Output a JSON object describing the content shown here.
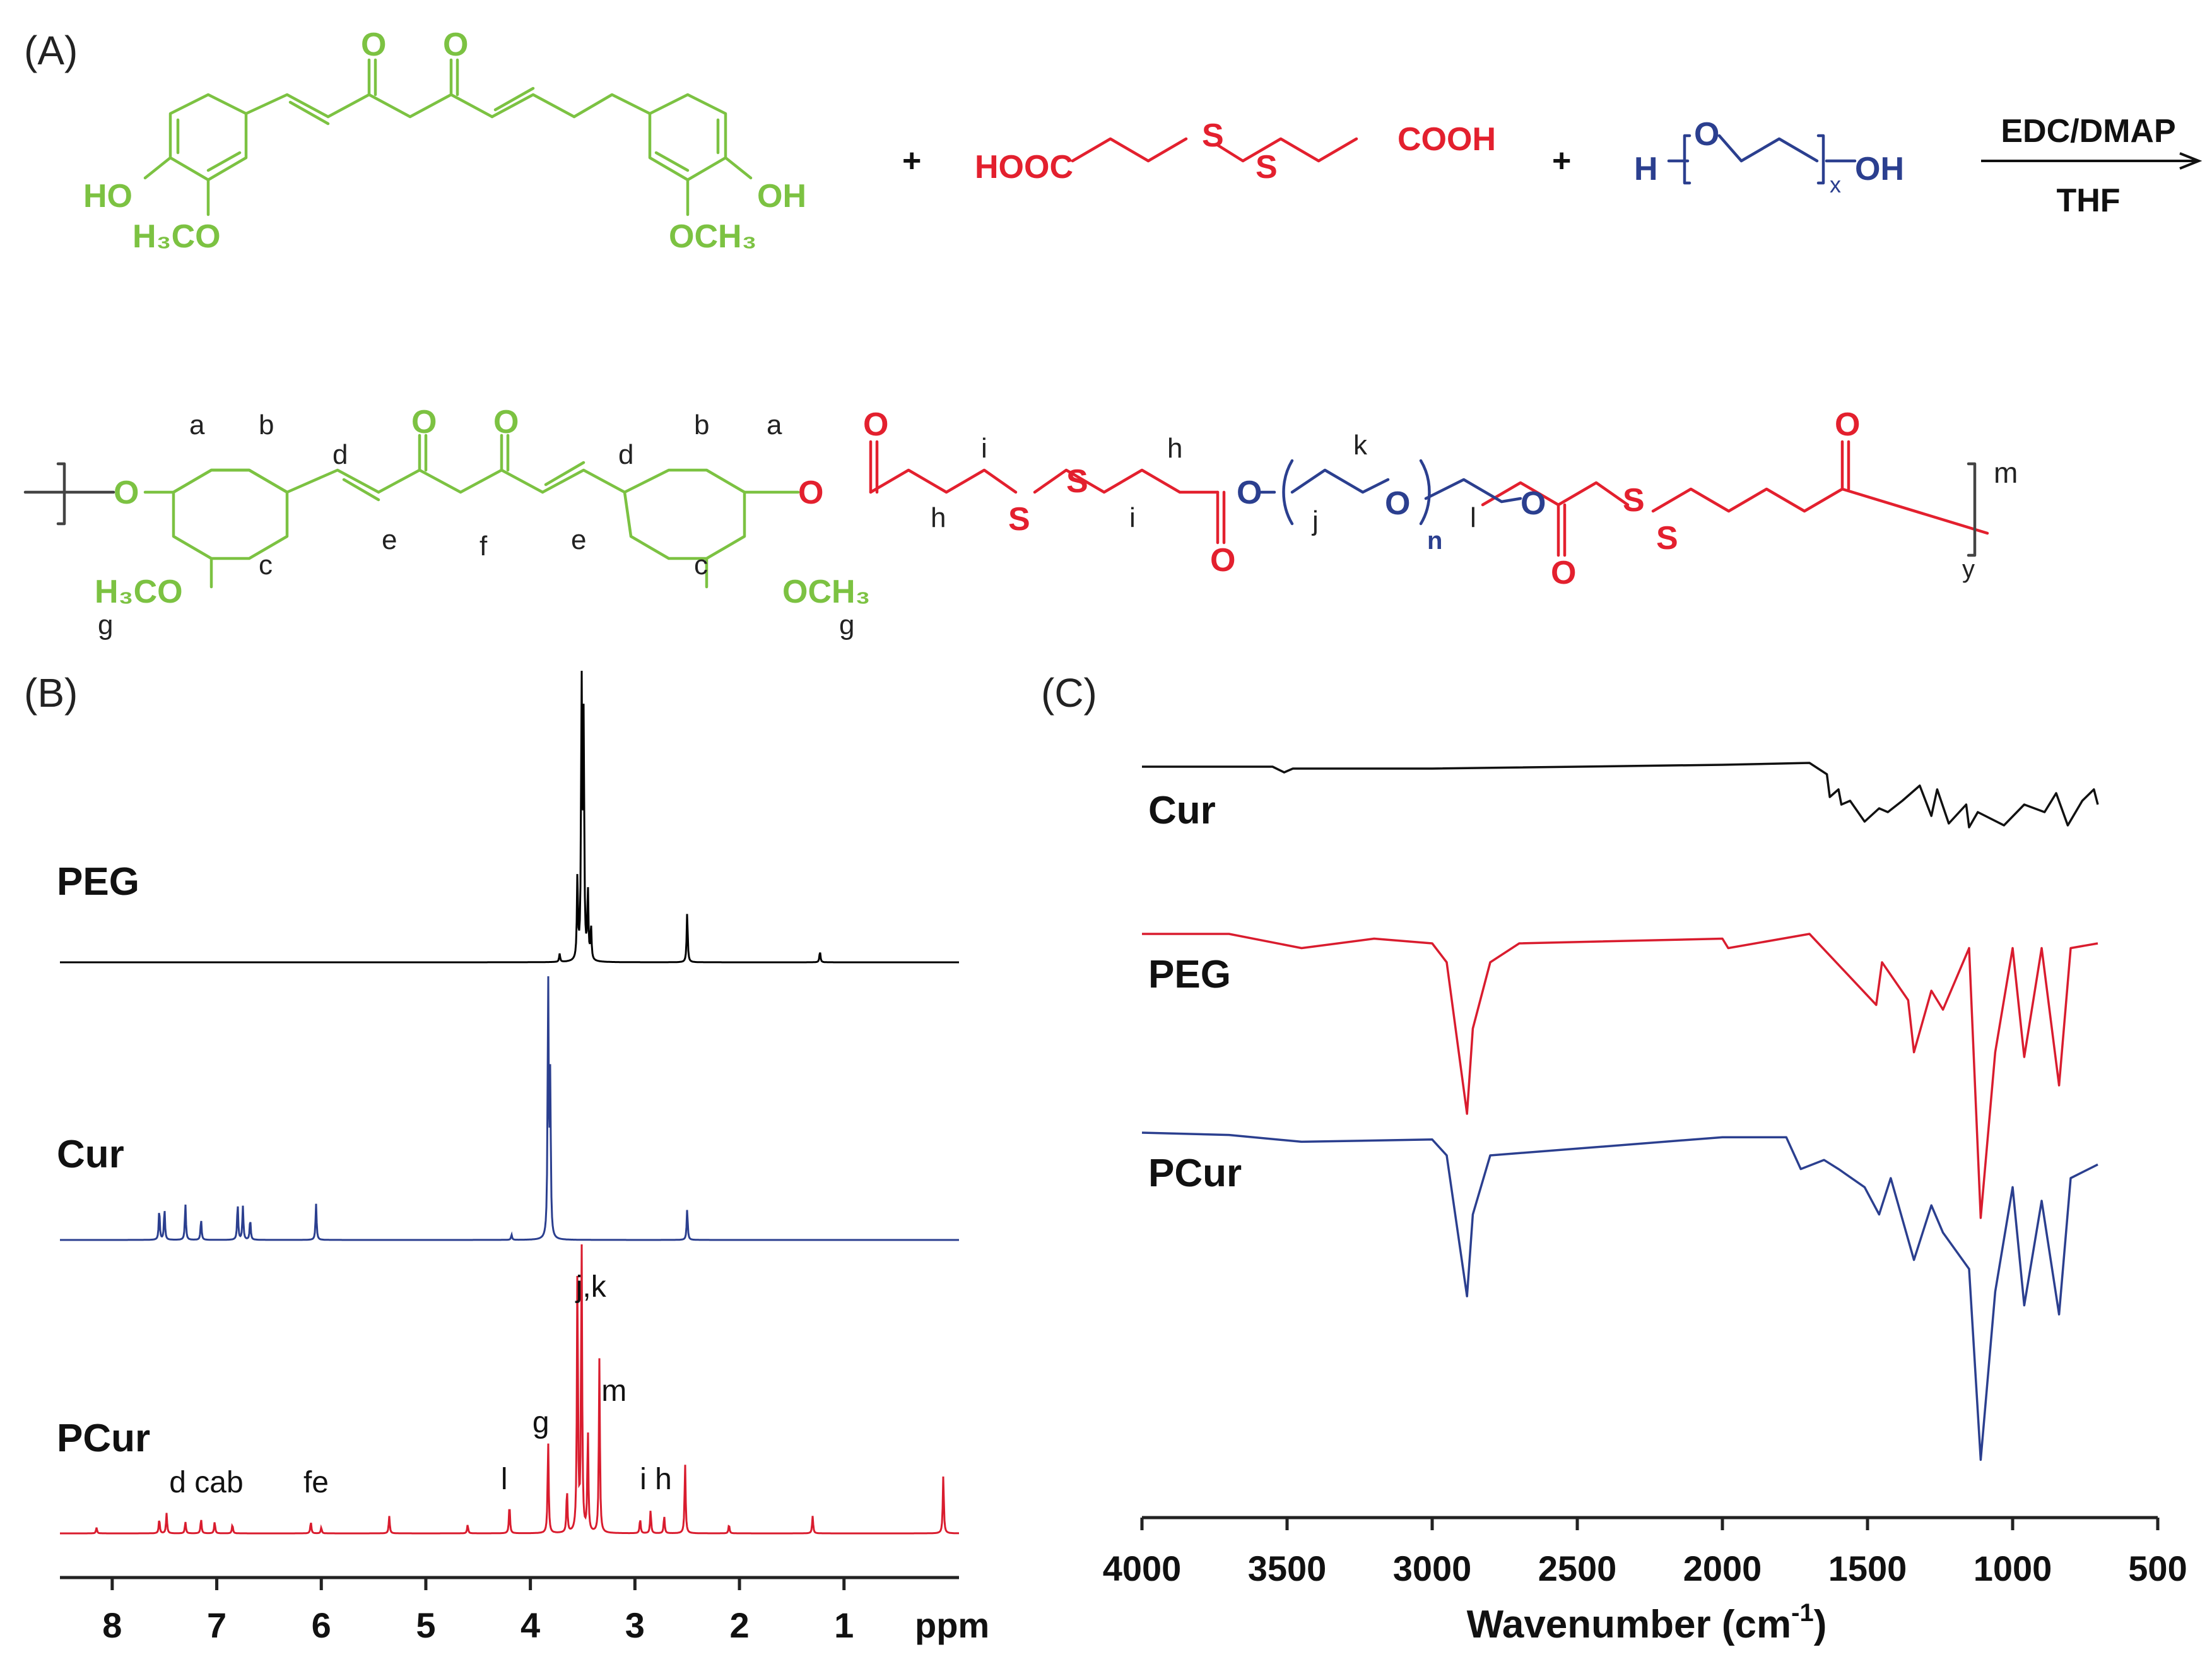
{
  "panels": {
    "a": "(A)",
    "b": "(B)",
    "c": "(C)"
  },
  "scheme": {
    "plus": "+",
    "reagent_top": "EDC/DMAP",
    "reagent_bottom": "THF",
    "curcumin": {
      "o": "O",
      "ho": "HO",
      "oh": "OH",
      "ome_left": "H₃CO",
      "ome_right": "OCH₃"
    },
    "linker": {
      "left": "HOOC",
      "s": "S",
      "right": "COOH"
    },
    "peg": {
      "h": "H",
      "o": "O",
      "x": "x",
      "oh": "OH"
    },
    "polymer": {
      "o": "O",
      "s": "S",
      "ome_left": "H₃CO",
      "ome_right": "OCH₃",
      "n": "n",
      "m": "m",
      "y": "y",
      "proton_labels": {
        "a": "a",
        "b": "b",
        "c": "c",
        "d": "d",
        "e": "e",
        "f": "f",
        "g": "g",
        "h": "h",
        "i": "i",
        "j": "j",
        "k": "k",
        "l": "l"
      }
    }
  },
  "chart_data": [
    {
      "type": "line",
      "title": "",
      "xlabel": "ppm",
      "ylabel": "",
      "xlim": [
        8.5,
        -0.1
      ],
      "xticks": [
        8,
        7,
        6,
        5,
        4,
        3,
        2,
        1
      ],
      "series": [
        {
          "name": "PEG",
          "color": "#000000",
          "peaks": [
            [
              3.51,
              1.0
            ],
            [
              3.49,
              0.85
            ],
            [
              3.55,
              0.3
            ],
            [
              3.45,
              0.25
            ],
            [
              3.42,
              0.12
            ],
            [
              3.72,
              0.03
            ],
            [
              2.5,
              0.18
            ],
            [
              1.23,
              0.04
            ]
          ]
        },
        {
          "name": "Cur",
          "color": "#2b3f8f",
          "peaks": [
            [
              7.55,
              0.12
            ],
            [
              7.5,
              0.12
            ],
            [
              7.3,
              0.14
            ],
            [
              7.15,
              0.08
            ],
            [
              6.8,
              0.14
            ],
            [
              6.75,
              0.13
            ],
            [
              6.68,
              0.08
            ],
            [
              6.05,
              0.14
            ],
            [
              3.83,
              1.0
            ],
            [
              3.81,
              0.6
            ],
            [
              2.5,
              0.12
            ],
            [
              4.18,
              0.02
            ]
          ]
        },
        {
          "name": "PCur",
          "color": "#d91c2e",
          "peaks": [
            [
              8.15,
              0.02
            ],
            [
              7.55,
              0.05
            ],
            [
              7.48,
              0.07
            ],
            [
              7.3,
              0.04
            ],
            [
              7.15,
              0.05
            ],
            [
              7.02,
              0.04
            ],
            [
              6.85,
              0.03
            ],
            [
              6.1,
              0.04
            ],
            [
              6.0,
              0.02
            ],
            [
              5.35,
              0.06
            ],
            [
              4.6,
              0.03
            ],
            [
              4.2,
              0.1
            ],
            [
              3.83,
              0.32
            ],
            [
              3.65,
              0.15
            ],
            [
              3.55,
              0.9
            ],
            [
              3.51,
              1.0
            ],
            [
              3.45,
              0.35
            ],
            [
              3.34,
              0.6
            ],
            [
              2.95,
              0.05
            ],
            [
              2.85,
              0.08
            ],
            [
              2.72,
              0.06
            ],
            [
              2.52,
              0.24
            ],
            [
              2.1,
              0.03
            ],
            [
              1.3,
              0.06
            ],
            [
              0.05,
              0.2
            ]
          ]
        }
      ],
      "peak_labels": [
        {
          "text": "j,k",
          "x": 3.42
        },
        {
          "text": "m",
          "x": 3.2
        },
        {
          "text": "g",
          "x": 3.9
        },
        {
          "text": "l",
          "x": 4.25
        },
        {
          "text": "i h",
          "x": 2.8
        },
        {
          "text": "d cab",
          "x": 7.1
        },
        {
          "text": "fe",
          "x": 6.05
        }
      ]
    },
    {
      "type": "line",
      "title": "",
      "xlabel": "Wavenumber (cm⁻¹)",
      "xlabel_main": "Wavenumber (cm",
      "xlabel_sup": "-1",
      "xlabel_close": ")",
      "ylabel": "",
      "xlim": [
        4000,
        500
      ],
      "xticks": [
        4000,
        3500,
        3000,
        2500,
        2000,
        1500,
        1000,
        500
      ],
      "series": [
        {
          "name": "Cur",
          "color": "#111111",
          "points": [
            [
              4000,
              0
            ],
            [
              3550,
              0
            ],
            [
              3510,
              0.15
            ],
            [
              3480,
              0.05
            ],
            [
              3000,
              0.05
            ],
            [
              2000,
              -0.05
            ],
            [
              1700,
              -0.1
            ],
            [
              1640,
              0.2
            ],
            [
              1630,
              0.8
            ],
            [
              1600,
              0.6
            ],
            [
              1590,
              1.0
            ],
            [
              1560,
              0.9
            ],
            [
              1510,
              1.45
            ],
            [
              1460,
              1.1
            ],
            [
              1430,
              1.2
            ],
            [
              1380,
              0.9
            ],
            [
              1320,
              0.5
            ],
            [
              1280,
              1.3
            ],
            [
              1260,
              0.6
            ],
            [
              1220,
              1.5
            ],
            [
              1160,
              1.0
            ],
            [
              1150,
              1.6
            ],
            [
              1120,
              1.2
            ],
            [
              1030,
              1.55
            ],
            [
              960,
              1.0
            ],
            [
              890,
              1.2
            ],
            [
              850,
              0.7
            ],
            [
              810,
              1.55
            ],
            [
              760,
              0.9
            ],
            [
              720,
              0.6
            ],
            [
              600,
              1.0
            ]
          ]
        },
        {
          "name": "PEG",
          "color": "#d91c2e",
          "points": [
            [
              4000,
              0
            ],
            [
              3700,
              0
            ],
            [
              3450,
              0.3
            ],
            [
              3200,
              0.1
            ],
            [
              3000,
              0.2
            ],
            [
              2950,
              0.6
            ],
            [
              2880,
              3.8
            ],
            [
              2860,
              2.0
            ],
            [
              2800,
              0.6
            ],
            [
              2700,
              0.2
            ],
            [
              2000,
              0.1
            ],
            [
              1980,
              0.3
            ],
            [
              1700,
              0.0
            ],
            [
              1470,
              1.5
            ],
            [
              1450,
              0.6
            ],
            [
              1360,
              1.4
            ],
            [
              1340,
              2.5
            ],
            [
              1280,
              1.2
            ],
            [
              1240,
              1.6
            ],
            [
              1150,
              0.3
            ],
            [
              1110,
              6.0
            ],
            [
              1060,
              2.5
            ],
            [
              1000,
              0.3
            ],
            [
              960,
              2.6
            ],
            [
              900,
              0.3
            ],
            [
              840,
              3.2
            ],
            [
              800,
              0.3
            ],
            [
              600,
              0.2
            ]
          ]
        },
        {
          "name": "PCur",
          "color": "#2b3f8f",
          "points": [
            [
              4000,
              0
            ],
            [
              3700,
              0.05
            ],
            [
              3450,
              0.2
            ],
            [
              3000,
              0.15
            ],
            [
              2950,
              0.5
            ],
            [
              2880,
              3.6
            ],
            [
              2860,
              1.8
            ],
            [
              2800,
              0.5
            ],
            [
              2000,
              0.1
            ],
            [
              1780,
              0.1
            ],
            [
              1730,
              0.8
            ],
            [
              1650,
              0.6
            ],
            [
              1600,
              0.8
            ],
            [
              1510,
              1.2
            ],
            [
              1460,
              1.8
            ],
            [
              1420,
              1.0
            ],
            [
              1340,
              2.8
            ],
            [
              1280,
              1.6
            ],
            [
              1240,
              2.2
            ],
            [
              1150,
              3.0
            ],
            [
              1110,
              7.2
            ],
            [
              1060,
              3.5
            ],
            [
              1000,
              1.2
            ],
            [
              960,
              3.8
            ],
            [
              900,
              1.5
            ],
            [
              840,
              4.0
            ],
            [
              800,
              1.0
            ],
            [
              600,
              0.7
            ]
          ]
        }
      ]
    }
  ]
}
